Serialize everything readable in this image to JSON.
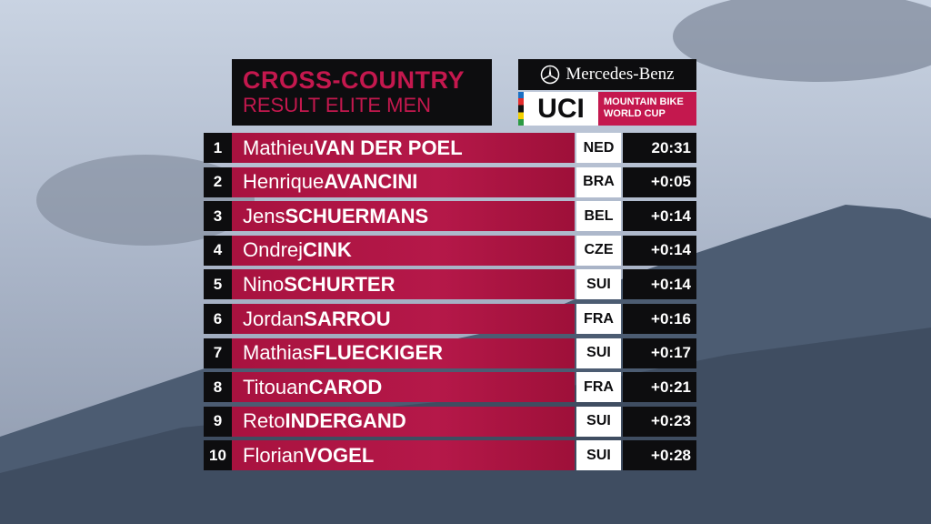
{
  "header": {
    "title": "CROSS-COUNTRY",
    "subtitle": "RESULT ELITE MEN",
    "sponsor": "Mercedes-Benz",
    "organizer": "UCI",
    "event_line1": "MOUNTAIN BIKE",
    "event_line2": "WORLD CUP"
  },
  "table": {
    "rows": [
      [
        "1",
        "Mathieu",
        "VAN DER POEL",
        "NED",
        "20:31"
      ],
      [
        "2",
        "Henrique",
        "AVANCINI",
        "BRA",
        "+0:05"
      ],
      [
        "3",
        "Jens",
        "SCHUERMANS",
        "BEL",
        "+0:14"
      ],
      [
        "4",
        "Ondrej",
        "CINK",
        "CZE",
        "+0:14"
      ],
      [
        "5",
        "Nino",
        "SCHURTER",
        "SUI",
        "+0:14"
      ],
      [
        "6",
        "Jordan",
        "SARROU",
        "FRA",
        "+0:16"
      ],
      [
        "7",
        "Mathias",
        "FLUECKIGER",
        "SUI",
        "+0:17"
      ],
      [
        "8",
        "Titouan",
        "CAROD",
        "FRA",
        "+0:21"
      ],
      [
        "9",
        "Reto",
        "INDERGAND",
        "SUI",
        "+0:23"
      ],
      [
        "10",
        "Florian",
        "VOGEL",
        "SUI",
        "+0:28"
      ]
    ]
  }
}
